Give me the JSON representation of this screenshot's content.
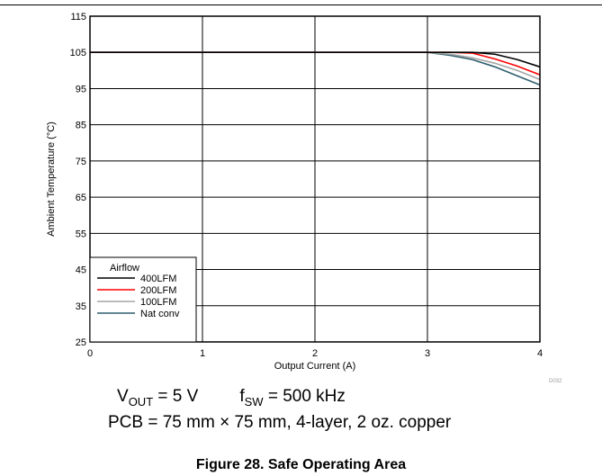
{
  "chart_data": {
    "type": "line",
    "title": "",
    "xlabel": "Output Current (A)",
    "ylabel": "Ambient Temperature (°C)",
    "xlim": [
      0,
      4
    ],
    "ylim": [
      25,
      115
    ],
    "xticks": [
      0,
      1,
      2,
      3,
      4
    ],
    "yticks": [
      25,
      35,
      45,
      55,
      65,
      75,
      85,
      95,
      105,
      115
    ],
    "grid": true,
    "legend": {
      "title": "Airflow",
      "placement": "bottom-left"
    },
    "series": [
      {
        "name": "400LFM",
        "color": "#000000",
        "x": [
          0,
          3.0,
          3.2,
          3.4,
          3.6,
          3.8,
          4.0
        ],
        "y": [
          105,
          105,
          105,
          105,
          104.5,
          103,
          101
        ]
      },
      {
        "name": "200LFM",
        "color": "#ff0000",
        "x": [
          0,
          3.0,
          3.2,
          3.4,
          3.6,
          3.8,
          4.0
        ],
        "y": [
          105,
          105,
          105,
          104.8,
          103.2,
          101.2,
          98.8
        ]
      },
      {
        "name": "100LFM",
        "color": "#a6a6a6",
        "x": [
          0,
          3.0,
          3.2,
          3.4,
          3.6,
          3.8,
          4.0
        ],
        "y": [
          105,
          105,
          104.5,
          103.5,
          102,
          100,
          97.5
        ]
      },
      {
        "name": "Nat conv",
        "color": "#2f5f6f",
        "x": [
          0,
          3.0,
          3.2,
          3.4,
          3.6,
          3.8,
          4.0
        ],
        "y": [
          105,
          105,
          104.2,
          103,
          101,
          98.5,
          96
        ]
      }
    ],
    "annotation": "D032"
  },
  "conditions": {
    "vout_symbol": "V",
    "vout_sub": "OUT",
    "vout_value": " = 5 V",
    "fsw_symbol": "f",
    "fsw_sub": "SW",
    "fsw_value": " = 500 kHz",
    "pcb": "PCB = 75 mm × 75 mm, 4-layer, 2 oz. copper"
  },
  "caption": "Figure 28. Safe Operating Area"
}
